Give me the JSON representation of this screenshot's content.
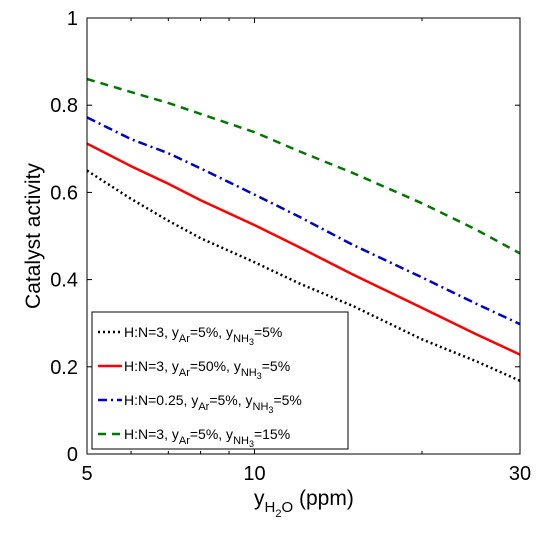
{
  "chart_data": {
    "type": "line",
    "xlabel": {
      "main": "y",
      "sub": "H",
      "sub2": "2",
      "sub3": "O",
      "unit": " (ppm)"
    },
    "ylabel": "Catalyst activity",
    "x_scale": "log",
    "xlim": [
      5,
      30
    ],
    "ylim": [
      0,
      1
    ],
    "x_ticks": [
      5,
      10,
      30
    ],
    "x_tick_labels": [
      "5",
      "10",
      "30"
    ],
    "y_ticks": [
      0,
      0.2,
      0.4,
      0.6,
      0.8,
      1
    ],
    "y_tick_labels": [
      "0",
      "0.2",
      "0.4",
      "0.6",
      "0.8",
      "1"
    ],
    "grid": false,
    "legend_position": "bottom-left",
    "series": [
      {
        "name": "H:N=3, y_Ar=5%, y_NH3=5%",
        "legend": {
          "pre": "H:N=3, y",
          "s1": "Ar",
          "mid": "=5%, y",
          "s2": "NH",
          "s3": "3",
          "post": "=5%"
        },
        "color": "#000000",
        "style": "dotted",
        "x": [
          5,
          6,
          7,
          8,
          10,
          12,
          15,
          20,
          25,
          30
        ],
        "values": [
          0.65,
          0.585,
          0.535,
          0.495,
          0.44,
          0.392,
          0.34,
          0.263,
          0.213,
          0.168
        ]
      },
      {
        "name": "H:N=3, y_Ar=50%, y_NH3=5%",
        "legend": {
          "pre": "H:N=3, y",
          "s1": "Ar",
          "mid": "=50%, y",
          "s2": "NH",
          "s3": "3",
          "post": "=5%"
        },
        "color": "#ff0000",
        "style": "solid",
        "x": [
          5,
          6,
          7,
          8,
          10,
          12,
          15,
          20,
          25,
          30
        ],
        "values": [
          0.712,
          0.66,
          0.62,
          0.582,
          0.525,
          0.475,
          0.412,
          0.335,
          0.275,
          0.228
        ]
      },
      {
        "name": "H:N=0.25, y_Ar=5%, y_NH3=5%",
        "legend": {
          "pre": "H:N=0.25, y",
          "s1": "Ar",
          "mid": "=5%, y",
          "s2": "NH",
          "s3": "3",
          "post": "=5%"
        },
        "color": "#0000cc",
        "style": "dashdot",
        "x": [
          5,
          6,
          7,
          8,
          10,
          12,
          15,
          20,
          25,
          30
        ],
        "values": [
          0.772,
          0.722,
          0.69,
          0.655,
          0.595,
          0.545,
          0.48,
          0.405,
          0.345,
          0.298
        ]
      },
      {
        "name": "H:N=3, y_Ar=5%, y_NH3=15%",
        "legend": {
          "pre": "H:N=3, y",
          "s1": "Ar",
          "mid": "=5%, y",
          "s2": "NH",
          "s3": "3",
          "post": "=15%"
        },
        "color": "#007700",
        "style": "dashed",
        "x": [
          5,
          6,
          7,
          8,
          10,
          12,
          15,
          20,
          25,
          30
        ],
        "values": [
          0.86,
          0.83,
          0.805,
          0.78,
          0.738,
          0.695,
          0.645,
          0.575,
          0.515,
          0.46
        ]
      }
    ]
  }
}
